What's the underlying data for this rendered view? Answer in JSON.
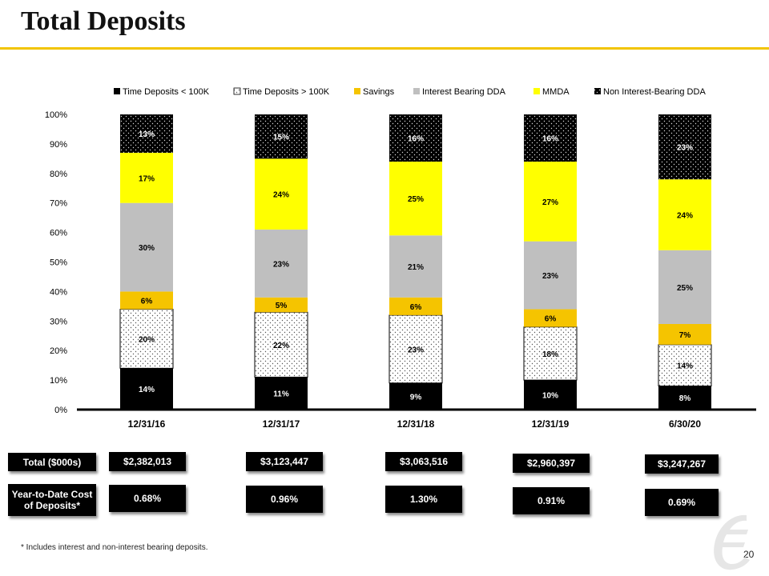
{
  "page": {
    "title": "Total Deposits",
    "footnote": "* Includes interest and non-interest bearing deposits.",
    "page_number": "20"
  },
  "chart_data": {
    "type": "bar",
    "stacked": true,
    "categories": [
      "12/31/16",
      "12/31/17",
      "12/31/18",
      "12/31/19",
      "6/30/20"
    ],
    "ylim": [
      0,
      100
    ],
    "yticks": [
      "0%",
      "10%",
      "20%",
      "30%",
      "40%",
      "50%",
      "60%",
      "70%",
      "80%",
      "90%",
      "100%"
    ],
    "legend_position": "top",
    "series": [
      {
        "name": "Time Deposits < 100K",
        "values": [
          14,
          11,
          9,
          10,
          8
        ],
        "labels": [
          "14%",
          "11%",
          "9%",
          "10%",
          "8%"
        ],
        "color": "#000000",
        "pattern": "solid"
      },
      {
        "name": "Time Deposits > 100K",
        "values": [
          20,
          22,
          23,
          18,
          14
        ],
        "labels": [
          "20%",
          "22%",
          "23%",
          "18%",
          "14%"
        ],
        "color": "#ffffff",
        "pattern": "dots"
      },
      {
        "name": "Savings",
        "values": [
          6,
          5,
          6,
          6,
          7
        ],
        "labels": [
          "6%",
          "5%",
          "6%",
          "6%",
          "7%"
        ],
        "color": "#f5c400",
        "pattern": "solid"
      },
      {
        "name": "Interest Bearing DDA",
        "values": [
          30,
          23,
          21,
          23,
          25
        ],
        "labels": [
          "30%",
          "23%",
          "21%",
          "23%",
          "25%"
        ],
        "color": "#bfbfbf",
        "pattern": "solid"
      },
      {
        "name": "MMDA",
        "values": [
          17,
          24,
          25,
          27,
          24
        ],
        "labels": [
          "17%",
          "24%",
          "25%",
          "27%",
          "24%"
        ],
        "color": "#ffff00",
        "pattern": "solid"
      },
      {
        "name": "Non Interest-Bearing DDA",
        "values": [
          13,
          15,
          16,
          16,
          23
        ],
        "labels": [
          "13%",
          "15%",
          "16%",
          "16%",
          "23%"
        ],
        "color": "#000000",
        "pattern": "dark-dots"
      }
    ]
  },
  "summary": {
    "total_label": "Total ($000s)",
    "totals": [
      "$2,382,013",
      "$3,123,447",
      "$3,063,516",
      "$2,960,397",
      "$3,247,267"
    ],
    "cost_label_line1": "Year-to-Date Cost",
    "cost_label_line2": "of Deposits*",
    "costs": [
      "0.68%",
      "0.96%",
      "1.30%",
      "0.91%",
      "0.69%"
    ]
  }
}
